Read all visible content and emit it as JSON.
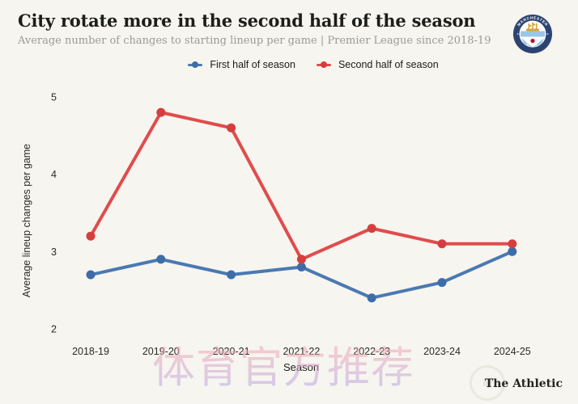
{
  "header": {
    "title": "City rotate more in the second half of the season",
    "subtitle": "Average number of changes to starting lineup per game | Premier League since 2018-19",
    "badge": {
      "top_text": "MANCHESTER",
      "bottom_text": "CITY"
    }
  },
  "legend": {
    "items": [
      {
        "label": "First half of season",
        "color": "#4a79b2",
        "marker_color": "#3e6ca8"
      },
      {
        "label": "Second half of season",
        "color": "#e04c4c",
        "marker_color": "#d63e3e"
      }
    ]
  },
  "chart_data": {
    "type": "line",
    "categories": [
      "2018-19",
      "2019-20",
      "2020-21",
      "2021-22",
      "2022-23",
      "2023-24",
      "2024-25"
    ],
    "series": [
      {
        "name": "First half of season",
        "color": "#4a79b2",
        "marker_color": "#3e6ca8",
        "values": [
          2.7,
          2.9,
          2.7,
          2.8,
          2.4,
          2.6,
          3.0
        ]
      },
      {
        "name": "Second half of season",
        "color": "#e04c4c",
        "marker_color": "#d63e3e",
        "values": [
          3.2,
          4.8,
          4.6,
          2.9,
          3.3,
          3.1,
          3.1
        ]
      }
    ],
    "title": "City rotate more in the second half of the season",
    "xlabel": "Season",
    "ylabel": "Average lineup changes per game",
    "yticks": [
      2,
      3,
      4,
      5
    ],
    "ylim": [
      1.85,
      5.2
    ],
    "grid": false,
    "legend_position": "top",
    "background_color": "#f6f5ef"
  },
  "watermark": {
    "text": "体育官方推荐"
  },
  "footer": {
    "brand": "The Athletic"
  }
}
